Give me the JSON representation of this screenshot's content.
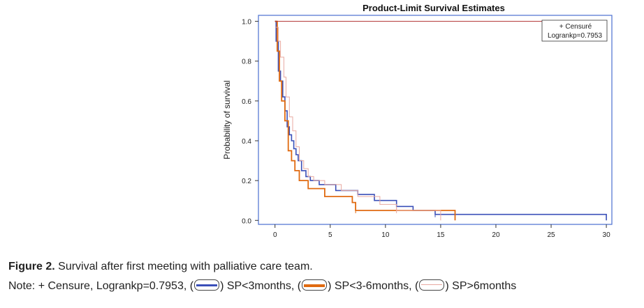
{
  "chart_data": {
    "type": "line",
    "title": "Product-Limit Survival Estimates",
    "xlabel": "",
    "ylabel": "Probability of survival",
    "xlim": [
      -1.5,
      30.5
    ],
    "ylim": [
      -0.02,
      1.03
    ],
    "x_ticks": [
      0,
      5,
      10,
      15,
      20,
      25,
      30
    ],
    "y_ticks": [
      0.0,
      0.2,
      0.4,
      0.6,
      0.8,
      1.0
    ],
    "y_tick_labels": [
      "0.0",
      "0.2",
      "0.4",
      "0.6",
      "0.8",
      "1.0"
    ],
    "grid": false,
    "legend_placement": "top-right",
    "legend": {
      "censure": "+ Censuré",
      "logrank": "Logrankp=0.7953"
    },
    "series": [
      {
        "name": "SP<3months",
        "color": "#3a4fb8",
        "steps": [
          [
            0,
            1.0
          ],
          [
            0.1,
            0.9
          ],
          [
            0.3,
            0.75
          ],
          [
            0.5,
            0.7
          ],
          [
            0.7,
            0.62
          ],
          [
            0.9,
            0.55
          ],
          [
            1.1,
            0.47
          ],
          [
            1.3,
            0.43
          ],
          [
            1.5,
            0.4
          ],
          [
            1.7,
            0.36
          ],
          [
            1.9,
            0.33
          ],
          [
            2.1,
            0.3
          ],
          [
            2.4,
            0.25
          ],
          [
            2.8,
            0.22
          ],
          [
            3.2,
            0.2
          ],
          [
            4.0,
            0.18
          ],
          [
            5.5,
            0.15
          ],
          [
            7.5,
            0.13
          ],
          [
            9.0,
            0.1
          ],
          [
            11.0,
            0.07
          ],
          [
            12.5,
            0.05
          ],
          [
            14.5,
            0.03
          ],
          [
            30.0,
            0.0
          ]
        ]
      },
      {
        "name": "SP<3-6months",
        "color": "#e06a10",
        "steps": [
          [
            0,
            1.0
          ],
          [
            0.2,
            0.85
          ],
          [
            0.4,
            0.7
          ],
          [
            0.6,
            0.6
          ],
          [
            0.9,
            0.5
          ],
          [
            1.2,
            0.35
          ],
          [
            1.5,
            0.3
          ],
          [
            1.8,
            0.25
          ],
          [
            2.2,
            0.2
          ],
          [
            3.0,
            0.16
          ],
          [
            4.5,
            0.12
          ],
          [
            7.0,
            0.09
          ],
          [
            7.3,
            0.05
          ],
          [
            16.3,
            0.0
          ]
        ]
      },
      {
        "name": "SP>6months",
        "color": "#e8a9a0",
        "steps": [
          [
            0,
            0.97
          ],
          [
            0.3,
            0.9
          ],
          [
            0.5,
            0.82
          ],
          [
            0.8,
            0.72
          ],
          [
            1.0,
            0.62
          ],
          [
            1.3,
            0.52
          ],
          [
            1.6,
            0.45
          ],
          [
            1.9,
            0.37
          ],
          [
            2.2,
            0.3
          ],
          [
            2.6,
            0.26
          ],
          [
            3.0,
            0.22
          ],
          [
            3.5,
            0.2
          ],
          [
            4.5,
            0.18
          ],
          [
            6.0,
            0.15
          ],
          [
            7.5,
            0.12
          ],
          [
            9.5,
            0.08
          ],
          [
            11.0,
            0.05
          ],
          [
            15.0,
            0.0
          ]
        ]
      },
      {
        "name": "+ Censure",
        "color": "#b03030",
        "steps": [
          [
            0,
            1.0
          ],
          [
            30.0,
            1.0
          ]
        ]
      }
    ]
  },
  "caption": {
    "label": "Figure 2.",
    "text": "Survival after first meeting with palliative care team."
  },
  "note": {
    "prefix": "Note:  + Censure, Logrankp=0.7953, (",
    "s1": ") SP<3months, (",
    "s2": ") SP<3-6months, (",
    "s3": ") SP>6months"
  }
}
